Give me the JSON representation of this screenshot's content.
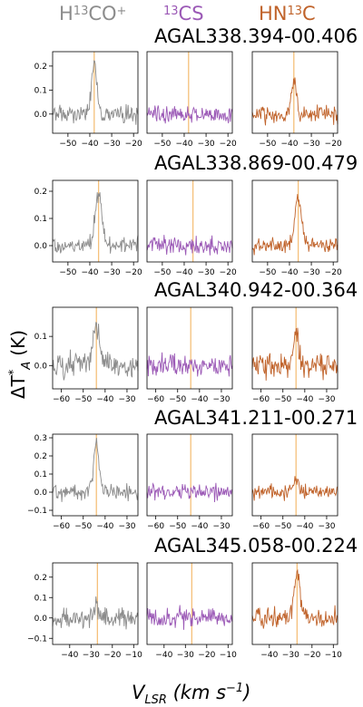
{
  "molecules": [
    {
      "pre": "H",
      "sup": "13",
      "post": "CO",
      "sup2": "+",
      "color": "#8c8c8c"
    },
    {
      "pre": "",
      "sup": "13",
      "post": "CS",
      "sup2": "",
      "color": "#9b59b6"
    },
    {
      "pre": "HN",
      "sup": "13",
      "post": "C",
      "sup2": "",
      "color": "#c0632b"
    }
  ],
  "ylabel": {
    "main": "ΔT",
    "sup": "*",
    "sub": "A",
    "unit": "(K)"
  },
  "xlabel": {
    "main": "V",
    "sub": "LSR",
    "unit_a": "(km s",
    "unit_sup": "−1",
    "unit_b": ")"
  },
  "vline_color": "#f5c07a",
  "chart_data": [
    {
      "type": "line",
      "title": "AGAL338.394-00.406",
      "xlim": [
        -57,
        -18
      ],
      "x_ticks": [
        -50,
        -40,
        -30,
        -20
      ],
      "ylim": [
        -0.08,
        0.26
      ],
      "y_ticks": [
        0.0,
        0.1,
        0.2
      ],
      "vlsr": -38,
      "series": [
        {
          "molecule": "H13CO+",
          "peak": 0.22,
          "width": 1.2,
          "noise": 0.025
        },
        {
          "molecule": "13CS",
          "peak": 0.0,
          "width": 1.2,
          "noise": 0.025
        },
        {
          "molecule": "HN13C",
          "peak": 0.13,
          "width": 1.3,
          "noise": 0.025
        }
      ]
    },
    {
      "type": "line",
      "title": "AGAL338.869-00.479",
      "xlim": [
        -57,
        -18
      ],
      "x_ticks": [
        -50,
        -40,
        -30,
        -20
      ],
      "ylim": [
        -0.06,
        0.24
      ],
      "y_ticks": [
        0.0,
        0.1,
        0.2
      ],
      "vlsr": -36,
      "series": [
        {
          "molecule": "H13CO+",
          "peak": 0.2,
          "width": 1.5,
          "noise": 0.022
        },
        {
          "molecule": "13CS",
          "peak": 0.0,
          "width": 1.5,
          "noise": 0.022
        },
        {
          "molecule": "HN13C",
          "peak": 0.18,
          "width": 1.5,
          "noise": 0.022
        }
      ]
    },
    {
      "type": "line",
      "title": "AGAL340.942-00.364",
      "xlim": [
        -64,
        -25
      ],
      "x_ticks": [
        -60,
        -50,
        -40,
        -30
      ],
      "ylim": [
        -0.08,
        0.2
      ],
      "y_ticks": [
        0.0,
        0.1
      ],
      "vlsr": -44,
      "series": [
        {
          "molecule": "H13CO+",
          "peak": 0.13,
          "width": 1.6,
          "noise": 0.03
        },
        {
          "molecule": "13CS",
          "peak": 0.0,
          "width": 1.6,
          "noise": 0.03
        },
        {
          "molecule": "HN13C",
          "peak": 0.14,
          "width": 1.0,
          "noise": 0.03
        }
      ]
    },
    {
      "type": "line",
      "title": "AGAL341.211-00.271",
      "xlim": [
        -64,
        -25
      ],
      "x_ticks": [
        -60,
        -50,
        -40,
        -30
      ],
      "ylim": [
        -0.13,
        0.32
      ],
      "y_ticks": [
        -0.1,
        0.0,
        0.1,
        0.2,
        0.3
      ],
      "vlsr": -44,
      "series": [
        {
          "molecule": "H13CO+",
          "peak": 0.26,
          "width": 1.3,
          "noise": 0.03
        },
        {
          "molecule": "13CS",
          "peak": 0.0,
          "width": 1.3,
          "noise": 0.03
        },
        {
          "molecule": "HN13C",
          "peak": 0.06,
          "width": 1.2,
          "noise": 0.03
        }
      ]
    },
    {
      "type": "line",
      "title": "AGAL345.058-00.224",
      "xlim": [
        -48,
        -8
      ],
      "x_ticks": [
        -40,
        -30,
        -20,
        -10
      ],
      "ylim": [
        -0.13,
        0.27
      ],
      "y_ticks": [
        -0.1,
        0.0,
        0.1,
        0.2
      ],
      "vlsr": -27,
      "series": [
        {
          "molecule": "H13CO+",
          "peak": 0.05,
          "width": 1.3,
          "noise": 0.035
        },
        {
          "molecule": "13CS",
          "peak": 0.0,
          "width": 1.3,
          "noise": 0.035
        },
        {
          "molecule": "HN13C",
          "peak": 0.21,
          "width": 1.4,
          "noise": 0.035
        }
      ]
    }
  ]
}
